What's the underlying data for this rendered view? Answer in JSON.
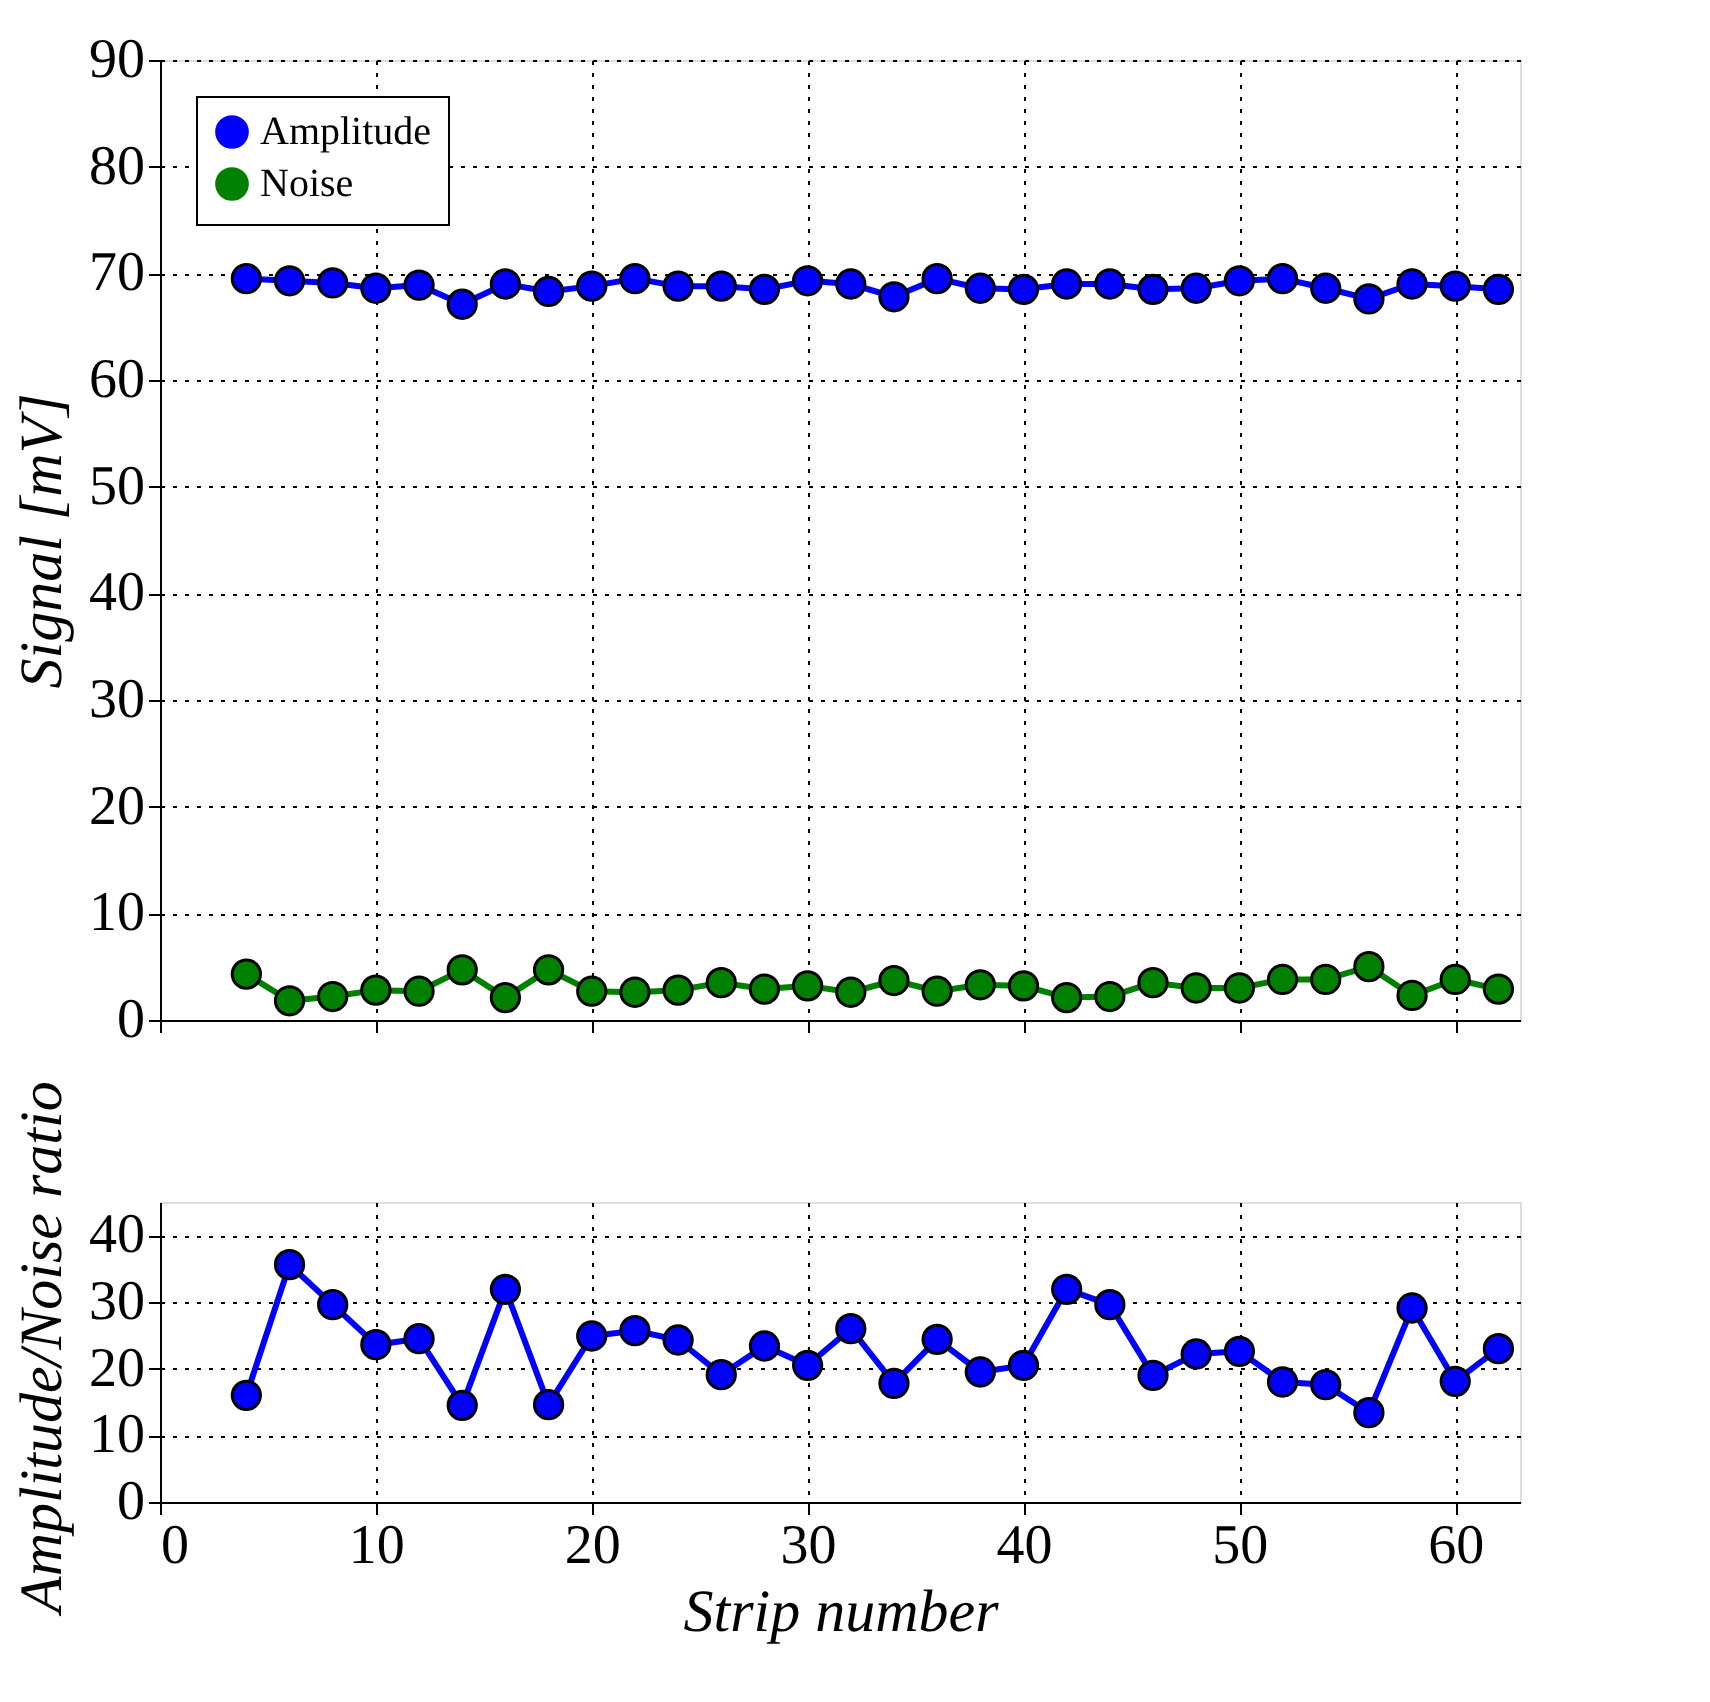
{
  "chart_data": [
    {
      "type": "line",
      "ylabel": "Signal [mV]",
      "x": [
        4,
        6,
        8,
        10,
        12,
        14,
        16,
        18,
        20,
        22,
        24,
        26,
        28,
        30,
        32,
        34,
        36,
        38,
        40,
        42,
        44,
        46,
        48,
        50,
        52,
        54,
        56,
        58,
        60,
        62
      ],
      "series": [
        {
          "name": "Amplitude",
          "color": "#0000ff",
          "values": [
            69.5,
            69.3,
            69.1,
            68.6,
            68.9,
            67.1,
            69.0,
            68.3,
            68.8,
            69.5,
            68.8,
            68.8,
            68.5,
            69.3,
            69.0,
            67.8,
            69.5,
            68.6,
            68.5,
            69.0,
            69.0,
            68.5,
            68.6,
            69.3,
            69.5,
            68.6,
            67.6,
            69.0,
            68.8,
            68.5
          ]
        },
        {
          "name": "Noise",
          "color": "#008000",
          "values": [
            4.3,
            1.8,
            2.2,
            2.8,
            2.7,
            4.7,
            2.1,
            4.7,
            2.7,
            2.6,
            2.8,
            3.5,
            2.9,
            3.2,
            2.6,
            3.7,
            2.7,
            3.3,
            3.2,
            2.1,
            2.2,
            3.5,
            3.0,
            3.0,
            3.8,
            3.8,
            5.0,
            2.3,
            3.8,
            2.9
          ]
        }
      ],
      "xlim": [
        0,
        63
      ],
      "xticks": [
        0,
        10,
        20,
        30,
        40,
        50,
        60
      ],
      "ylim": [
        0,
        90
      ],
      "yticks": [
        0,
        10,
        20,
        30,
        40,
        50,
        60,
        70,
        80,
        90
      ],
      "grid": true,
      "legend": "top left",
      "marker": "circle",
      "line_style": "solid",
      "tick_labels": "y"
    },
    {
      "type": "line",
      "xlabel": "Strip number",
      "ylabel": "Amplitude/Noise ratio",
      "x": [
        4,
        6,
        8,
        10,
        12,
        14,
        16,
        18,
        20,
        22,
        24,
        26,
        28,
        30,
        32,
        34,
        36,
        38,
        40,
        42,
        44,
        46,
        48,
        50,
        52,
        54,
        56,
        58,
        60,
        62
      ],
      "series": [
        {
          "color": "#0000ff",
          "values": [
            16.0,
            35.6,
            29.6,
            23.6,
            24.5,
            14.5,
            31.9,
            14.6,
            24.9,
            25.7,
            24.3,
            19.1,
            23.4,
            20.5,
            26.0,
            17.8,
            24.4,
            19.5,
            20.5,
            31.9,
            29.6,
            19.0,
            22.2,
            22.6,
            18.0,
            17.6,
            13.4,
            29.1,
            18.1,
            23.0
          ]
        }
      ],
      "xlim": [
        0,
        63
      ],
      "xticks": [
        0,
        10,
        20,
        30,
        40,
        50,
        60
      ],
      "ylim": [
        0,
        45
      ],
      "yticks": [
        0,
        10,
        20,
        30,
        40
      ],
      "grid": true,
      "marker": "circle",
      "line_style": "solid"
    }
  ]
}
